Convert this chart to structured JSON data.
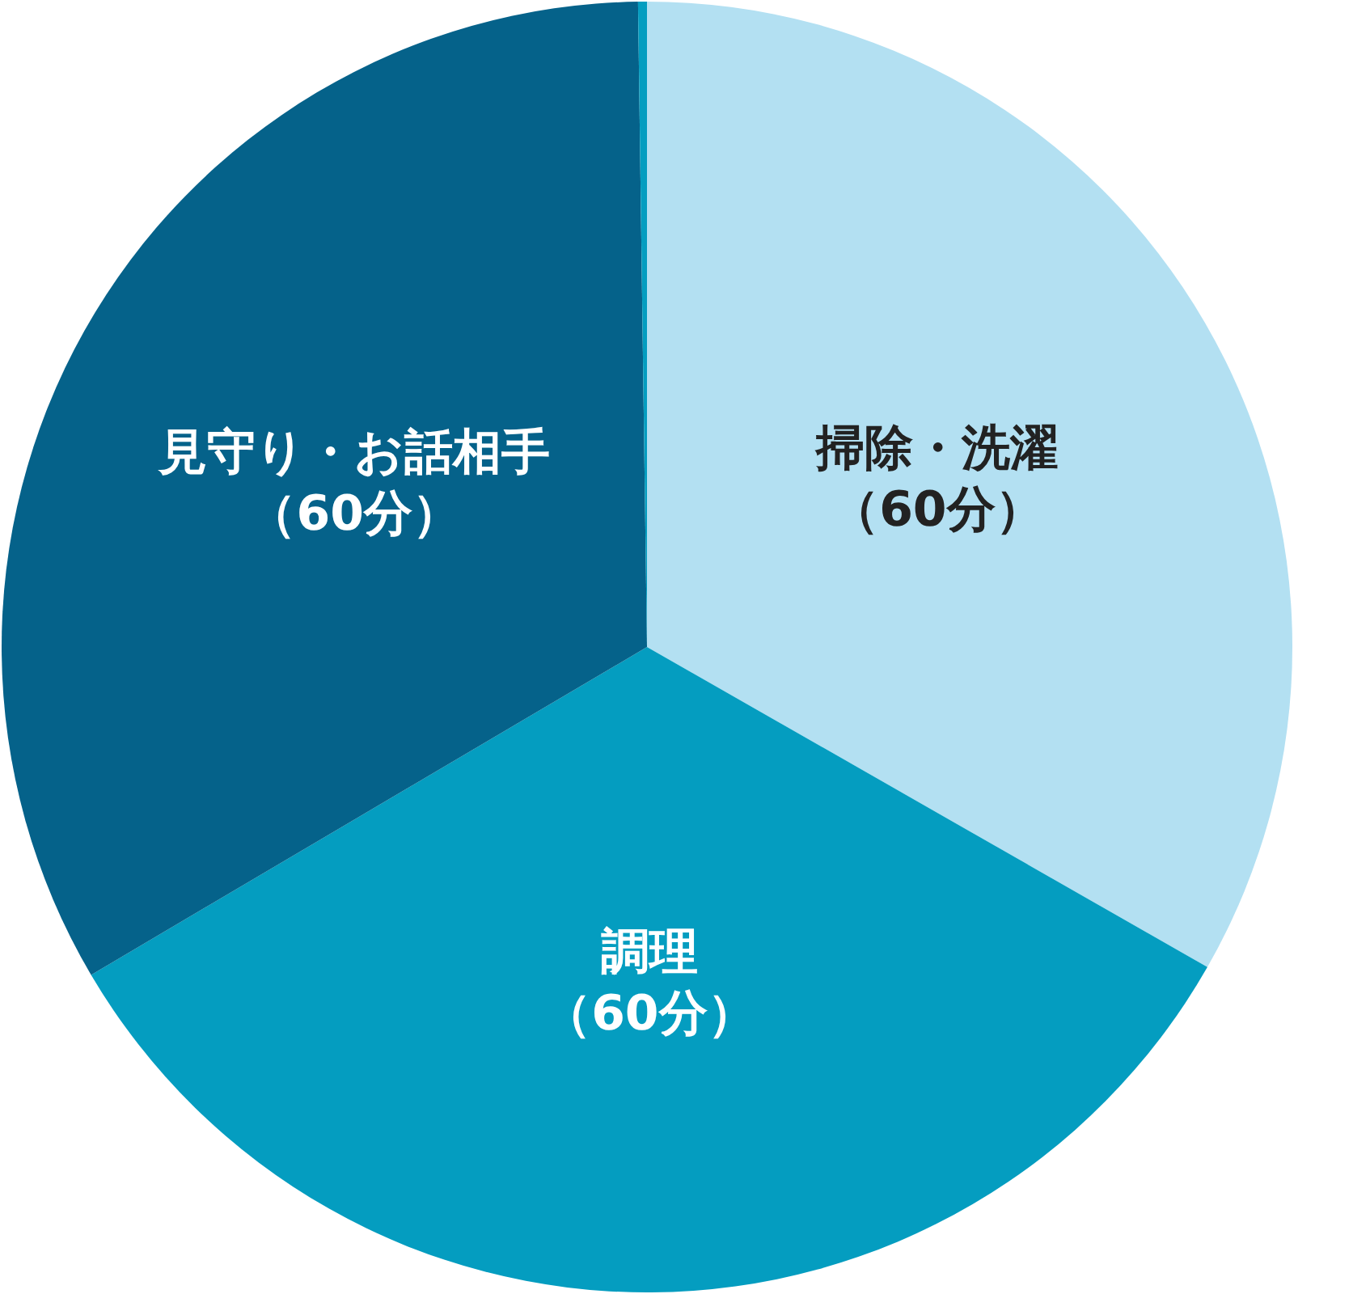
{
  "chart_data": {
    "type": "pie",
    "categories": [
      "掃除・洗濯",
      "調理",
      "見守り・お話相手",
      null
    ],
    "values": [
      60,
      60,
      60,
      0.4
    ],
    "colors": [
      "#b3e0f2",
      "#049dc0",
      "#05628a",
      "#049dc0"
    ],
    "value_labels": [
      "（60分）",
      "（60分）",
      "（60分）",
      null
    ]
  }
}
